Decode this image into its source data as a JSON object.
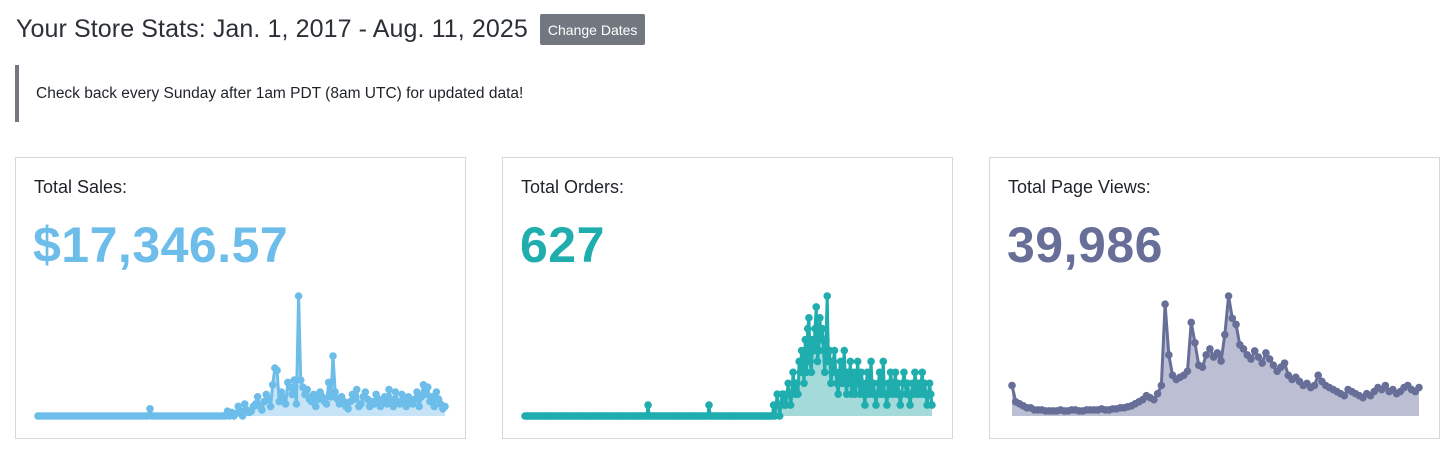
{
  "header": {
    "title": "Your Store Stats: Jan. 1, 2017 - Aug. 11, 2025",
    "change_dates_label": "Change Dates"
  },
  "notice": {
    "text": "Check back every Sunday after 1am PDT (8am UTC) for updated data!"
  },
  "cards": [
    {
      "label": "Total Sales:",
      "value": "$17,346.57",
      "color": "#6cbde9",
      "fill": "#c6e4f5"
    },
    {
      "label": "Total Orders:",
      "value": "627",
      "color": "#1fadae",
      "fill": "#a5dadb"
    },
    {
      "label": "Total Page Views:",
      "value": "39,986",
      "color": "#676e98",
      "fill": "#bcbfd3"
    }
  ],
  "chart_data": [
    {
      "type": "area",
      "title": "Total Sales",
      "series": [
        {
          "color": "#6cbde9",
          "values": [
            0,
            0,
            0,
            0,
            0,
            0,
            0,
            0,
            0,
            0,
            0,
            0,
            0,
            0,
            0,
            0,
            0,
            0,
            0,
            0,
            0,
            0,
            0,
            0,
            0,
            0,
            0,
            0,
            0,
            0,
            0,
            0,
            0,
            0,
            0,
            0,
            0,
            0,
            0,
            0,
            0,
            0,
            0,
            0,
            0,
            0,
            0,
            0,
            0,
            0,
            0,
            0,
            6,
            0,
            0,
            0,
            0,
            0,
            0,
            0,
            0,
            0,
            0,
            0,
            0,
            0,
            0,
            0,
            0,
            0,
            0,
            0,
            0,
            0,
            0,
            0,
            0,
            0,
            0,
            0,
            0,
            0,
            0,
            0,
            0,
            0,
            0,
            0,
            4,
            0,
            3,
            0,
            2,
            8,
            4,
            0,
            10,
            5,
            3,
            4,
            8,
            10,
            16,
            8,
            5,
            12,
            18,
            14,
            8,
            26,
            40,
            38,
            12,
            20,
            15,
            10,
            28,
            24,
            18,
            30,
            10,
            100,
            30,
            24,
            18,
            22,
            14,
            12,
            18,
            8,
            14,
            20,
            16,
            12,
            10,
            28,
            16,
            50,
            20,
            14,
            10,
            16,
            12,
            8,
            6,
            12,
            18,
            14,
            22,
            8,
            10,
            16,
            20,
            14,
            8,
            12,
            10,
            18,
            14,
            8,
            12,
            16,
            10,
            22,
            14,
            8,
            20,
            12,
            10,
            18,
            14,
            8,
            16,
            12,
            10,
            14,
            20,
            8,
            16,
            26,
            18,
            24,
            12,
            16,
            8,
            20,
            14,
            10,
            6,
            8
          ]
        }
      ]
    },
    {
      "type": "area",
      "title": "Total Orders",
      "series": [
        {
          "color": "#1fadae",
          "values": [
            0,
            0,
            0,
            0,
            0,
            0,
            0,
            0,
            0,
            0,
            0,
            0,
            0,
            0,
            0,
            0,
            0,
            0,
            0,
            0,
            0,
            0,
            0,
            0,
            0,
            0,
            0,
            0,
            0,
            0,
            0,
            0,
            0,
            0,
            0,
            0,
            0,
            0,
            0,
            0,
            0,
            0,
            0,
            0,
            0,
            0,
            0,
            0,
            0,
            0,
            0,
            0,
            0,
            0,
            0,
            0,
            0,
            0,
            0,
            0,
            0,
            0,
            0,
            0,
            0,
            0,
            0,
            0,
            0,
            0,
            0,
            0,
            0,
            0,
            0,
            0,
            0,
            0,
            0,
            0,
            0,
            0,
            0,
            0,
            0,
            0,
            0,
            0,
            0,
            0,
            0,
            0,
            0,
            0,
            0,
            0,
            0,
            0,
            0,
            0,
            0,
            1,
            0,
            0,
            0,
            0,
            0,
            0,
            0,
            0,
            0,
            0,
            0,
            0,
            0,
            0,
            0,
            0,
            0,
            0,
            0,
            0,
            0,
            0,
            0,
            0,
            0,
            0,
            0,
            0,
            0,
            0,
            0,
            0,
            0,
            0,
            0,
            0,
            0,
            0,
            0,
            0,
            0,
            0,
            0,
            0,
            0,
            0,
            0,
            0,
            0,
            1,
            0,
            0,
            0,
            0,
            0,
            0,
            0,
            0,
            0,
            0,
            0,
            0,
            0,
            0,
            0,
            0,
            0,
            0,
            0,
            0,
            0,
            0,
            0,
            0,
            0,
            0,
            0,
            0,
            0,
            0,
            0,
            0,
            0,
            0,
            0,
            0,
            0,
            0,
            0,
            0,
            0,
            0,
            0,
            0,
            0,
            0,
            0,
            0,
            0,
            0,
            0,
            0,
            1,
            0,
            1,
            2,
            1,
            0,
            1,
            2,
            2,
            1,
            1,
            2,
            3,
            2,
            1,
            2,
            4,
            3,
            2,
            3,
            2,
            5,
            4,
            6,
            5,
            3,
            7,
            4,
            8,
            9,
            5,
            4,
            7,
            6,
            8,
            10,
            5,
            6,
            9,
            7,
            8,
            6,
            4,
            7,
            11,
            5,
            6,
            3,
            4,
            5,
            6,
            4,
            3,
            2,
            4,
            5,
            3,
            4,
            6,
            3,
            2,
            4,
            3,
            5,
            2,
            3,
            4,
            2,
            3,
            5,
            3,
            2,
            4,
            3,
            2,
            1,
            3,
            4,
            2,
            3,
            5,
            2,
            3,
            2,
            1,
            2,
            3,
            4,
            2,
            3,
            5,
            2,
            2,
            1,
            3,
            2,
            4,
            3,
            2,
            3,
            4,
            2,
            3,
            2,
            1,
            2,
            3,
            4,
            3,
            2,
            3,
            2,
            1,
            2,
            3,
            2,
            4,
            3,
            2,
            3,
            2,
            3,
            4,
            2,
            3,
            2,
            1,
            2,
            3,
            2,
            1
          ]
        }
      ]
    },
    {
      "type": "area",
      "title": "Total Page Views",
      "series": [
        {
          "color": "#676e98",
          "values": [
            30,
            14,
            12,
            10,
            8,
            8,
            6,
            6,
            6,
            5,
            5,
            5,
            5,
            6,
            5,
            5,
            6,
            6,
            5,
            5,
            6,
            6,
            6,
            6,
            7,
            6,
            6,
            7,
            7,
            8,
            8,
            9,
            10,
            12,
            14,
            16,
            20,
            18,
            16,
            22,
            30,
            110,
            60,
            40,
            36,
            38,
            40,
            44,
            92,
            72,
            50,
            48,
            60,
            66,
            58,
            62,
            54,
            80,
            118,
            96,
            90,
            70,
            66,
            60,
            56,
            64,
            58,
            52,
            62,
            56,
            50,
            44,
            48,
            52,
            40,
            36,
            38,
            34,
            30,
            32,
            28,
            30,
            40,
            34,
            30,
            28,
            26,
            24,
            22,
            20,
            26,
            24,
            22,
            20,
            18,
            22,
            20,
            24,
            28,
            26,
            30,
            24,
            26,
            22,
            24,
            28,
            30,
            26,
            24,
            28
          ]
        }
      ]
    }
  ]
}
